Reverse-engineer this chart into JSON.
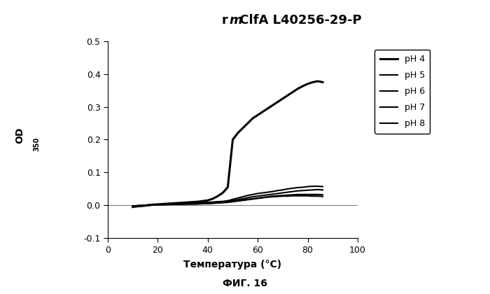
{
  "xlabel": "Температура (°C)",
  "caption": "ФИГ. 16",
  "xlim": [
    0,
    100
  ],
  "ylim": [
    -0.1,
    0.5
  ],
  "xticks": [
    0,
    20,
    40,
    60,
    80,
    100
  ],
  "yticks": [
    -0.1,
    0.0,
    0.1,
    0.2,
    0.3,
    0.4,
    0.5
  ],
  "legend_labels": [
    "pH 4",
    "pH 5",
    "pH 6",
    "pH 7",
    "pH 8"
  ],
  "background_color": "#ffffff",
  "line_color": "#000000",
  "series": {
    "pH4": {
      "x": [
        10,
        12,
        14,
        16,
        18,
        20,
        22,
        24,
        26,
        28,
        30,
        32,
        34,
        36,
        38,
        40,
        42,
        44,
        46,
        48,
        50,
        52,
        54,
        56,
        58,
        60,
        62,
        64,
        66,
        68,
        70,
        72,
        74,
        76,
        78,
        80,
        82,
        84,
        86
      ],
      "y": [
        -0.005,
        -0.003,
        -0.002,
        0.0,
        0.002,
        0.003,
        0.004,
        0.005,
        0.006,
        0.007,
        0.008,
        0.009,
        0.01,
        0.011,
        0.013,
        0.015,
        0.02,
        0.028,
        0.038,
        0.055,
        0.2,
        0.22,
        0.235,
        0.25,
        0.265,
        0.275,
        0.285,
        0.295,
        0.305,
        0.315,
        0.325,
        0.335,
        0.345,
        0.355,
        0.363,
        0.37,
        0.375,
        0.378,
        0.375
      ],
      "lw": 2.2
    },
    "pH5": {
      "x": [
        10,
        12,
        14,
        16,
        18,
        20,
        22,
        24,
        26,
        28,
        30,
        32,
        34,
        36,
        38,
        40,
        42,
        44,
        46,
        48,
        50,
        52,
        54,
        56,
        58,
        60,
        62,
        64,
        66,
        68,
        70,
        72,
        74,
        76,
        78,
        80,
        82,
        84,
        86
      ],
      "y": [
        -0.003,
        -0.002,
        -0.001,
        0.0,
        0.001,
        0.002,
        0.003,
        0.004,
        0.004,
        0.005,
        0.005,
        0.006,
        0.006,
        0.007,
        0.008,
        0.009,
        0.01,
        0.011,
        0.012,
        0.014,
        0.018,
        0.022,
        0.026,
        0.03,
        0.033,
        0.036,
        0.038,
        0.04,
        0.042,
        0.045,
        0.047,
        0.05,
        0.052,
        0.054,
        0.055,
        0.057,
        0.058,
        0.058,
        0.057
      ],
      "lw": 1.5
    },
    "pH6": {
      "x": [
        10,
        12,
        14,
        16,
        18,
        20,
        22,
        24,
        26,
        28,
        30,
        32,
        34,
        36,
        38,
        40,
        42,
        44,
        46,
        48,
        50,
        52,
        54,
        56,
        58,
        60,
        62,
        64,
        66,
        68,
        70,
        72,
        74,
        76,
        78,
        80,
        82,
        84,
        86
      ],
      "y": [
        -0.002,
        -0.001,
        0.0,
        0.001,
        0.002,
        0.002,
        0.003,
        0.003,
        0.004,
        0.004,
        0.005,
        0.005,
        0.006,
        0.006,
        0.007,
        0.008,
        0.009,
        0.01,
        0.011,
        0.012,
        0.014,
        0.017,
        0.02,
        0.023,
        0.026,
        0.028,
        0.03,
        0.032,
        0.034,
        0.036,
        0.038,
        0.04,
        0.042,
        0.044,
        0.045,
        0.046,
        0.047,
        0.048,
        0.047
      ],
      "lw": 1.5
    },
    "pH7": {
      "x": [
        10,
        12,
        14,
        16,
        18,
        20,
        22,
        24,
        26,
        28,
        30,
        32,
        34,
        36,
        38,
        40,
        42,
        44,
        46,
        48,
        50,
        52,
        54,
        56,
        58,
        60,
        62,
        64,
        66,
        68,
        70,
        72,
        74,
        76,
        78,
        80,
        82,
        84,
        86
      ],
      "y": [
        -0.002,
        -0.001,
        0.0,
        0.001,
        0.001,
        0.002,
        0.002,
        0.003,
        0.003,
        0.003,
        0.004,
        0.004,
        0.004,
        0.005,
        0.005,
        0.006,
        0.007,
        0.008,
        0.009,
        0.01,
        0.012,
        0.014,
        0.016,
        0.018,
        0.02,
        0.022,
        0.024,
        0.026,
        0.028,
        0.029,
        0.03,
        0.031,
        0.032,
        0.033,
        0.033,
        0.033,
        0.033,
        0.033,
        0.032
      ],
      "lw": 1.5
    },
    "pH8": {
      "x": [
        10,
        12,
        14,
        16,
        18,
        20,
        22,
        24,
        26,
        28,
        30,
        32,
        34,
        36,
        38,
        40,
        42,
        44,
        46,
        48,
        50,
        52,
        54,
        56,
        58,
        60,
        62,
        64,
        66,
        68,
        70,
        72,
        74,
        76,
        78,
        80,
        82,
        84,
        86
      ],
      "y": [
        -0.003,
        -0.002,
        -0.001,
        0.0,
        0.001,
        0.001,
        0.002,
        0.002,
        0.003,
        0.003,
        0.003,
        0.004,
        0.004,
        0.004,
        0.005,
        0.005,
        0.006,
        0.007,
        0.008,
        0.009,
        0.011,
        0.013,
        0.015,
        0.017,
        0.019,
        0.021,
        0.023,
        0.025,
        0.026,
        0.027,
        0.028,
        0.028,
        0.029,
        0.029,
        0.029,
        0.029,
        0.028,
        0.028,
        0.027
      ],
      "lw": 1.5
    }
  }
}
